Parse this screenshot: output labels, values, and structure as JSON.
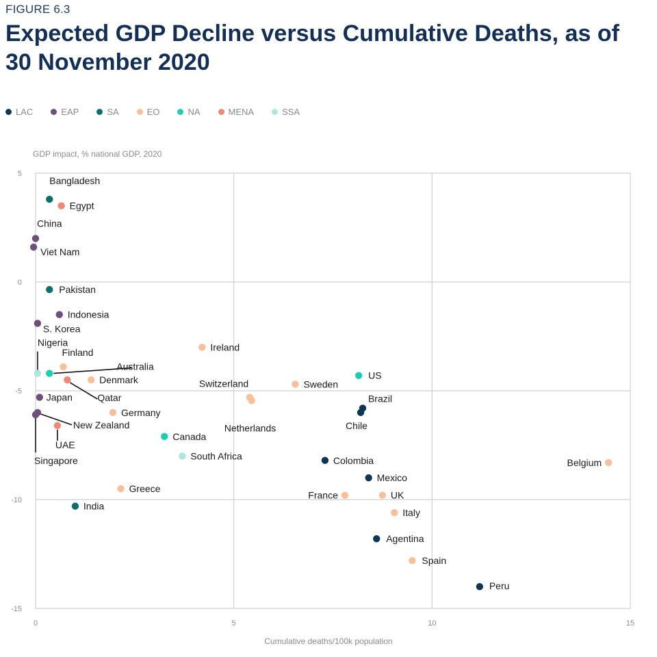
{
  "figure_label": "FIGURE 6.3",
  "colors": {
    "LAC": "#0d3754",
    "EAP": "#6e4f7b",
    "SA": "#0d6e6a",
    "EO": "#f7bf9a",
    "NA": "#1fcdb0",
    "MENA": "#f08877",
    "SSA": "#aee6df",
    "grid": "#cfcfcf"
  },
  "chart_data": {
    "type": "scatter",
    "title": "Expected GDP Decline versus Cumulative Deaths, as of 30 November 2020",
    "xlabel": "Cumulative deaths/100k population",
    "ylabel": "GDP impact, % national GDP, 2020",
    "xlim": [
      0,
      15
    ],
    "ylim": [
      -15,
      5
    ],
    "xticks": [
      0,
      5,
      10,
      15
    ],
    "yticks": [
      5,
      0,
      -5,
      -10,
      -15
    ],
    "grid": true,
    "legend": [
      {
        "key": "LAC",
        "label": "LAC"
      },
      {
        "key": "EAP",
        "label": "EAP"
      },
      {
        "key": "SA",
        "label": "SA"
      },
      {
        "key": "EO",
        "label": "EO"
      },
      {
        "key": "NA",
        "label": "NA"
      },
      {
        "key": "MENA",
        "label": "MENA"
      },
      {
        "key": "SSA",
        "label": "SSA"
      }
    ],
    "points": [
      {
        "name": "Bangladesh",
        "region": "SA",
        "x": 0.35,
        "y": 3.8
      },
      {
        "name": "Egypt",
        "region": "MENA",
        "x": 0.65,
        "y": 3.5
      },
      {
        "name": "China",
        "region": "EAP",
        "x": 0.0,
        "y": 2.0
      },
      {
        "name": "Viet Nam",
        "region": "EAP",
        "x": -0.05,
        "y": 1.6
      },
      {
        "name": "Pakistan",
        "region": "SA",
        "x": 0.35,
        "y": -0.35
      },
      {
        "name": "Indonesia",
        "region": "EAP",
        "x": 0.6,
        "y": -1.5
      },
      {
        "name": "S. Korea",
        "region": "EAP",
        "x": 0.05,
        "y": -1.9
      },
      {
        "name": "Ireland",
        "region": "EO",
        "x": 4.2,
        "y": -3.0
      },
      {
        "name": "Nigeria",
        "region": "SSA",
        "x": 0.05,
        "y": -4.2
      },
      {
        "name": "Finland",
        "region": "EO",
        "x": 0.7,
        "y": -3.9
      },
      {
        "name": "Australia",
        "region": "NA",
        "x": 0.35,
        "y": -4.2
      },
      {
        "name": "Denmark",
        "region": "EO",
        "x": 1.4,
        "y": -4.5
      },
      {
        "name": "Qatar",
        "region": "MENA",
        "x": 0.8,
        "y": -4.5
      },
      {
        "name": "Japan",
        "region": "EAP",
        "x": 0.1,
        "y": -5.3
      },
      {
        "name": "Germany",
        "region": "EO",
        "x": 1.95,
        "y": -6.0
      },
      {
        "name": "New Zealand",
        "region": "EAP",
        "x": 0.05,
        "y": -6.0
      },
      {
        "name": "Singapore",
        "region": "EAP",
        "x": 0.0,
        "y": -6.1
      },
      {
        "name": "UAE",
        "region": "MENA",
        "x": 0.55,
        "y": -6.6
      },
      {
        "name": "Canada",
        "region": "NA",
        "x": 3.25,
        "y": -7.1
      },
      {
        "name": "South Africa",
        "region": "SSA",
        "x": 3.7,
        "y": -8.0
      },
      {
        "name": "Greece",
        "region": "EO",
        "x": 2.15,
        "y": -9.5
      },
      {
        "name": "India",
        "region": "SA",
        "x": 1.0,
        "y": -10.3
      },
      {
        "name": "US",
        "region": "NA",
        "x": 8.15,
        "y": -4.3
      },
      {
        "name": "Switzerland",
        "region": "EO",
        "x": 5.4,
        "y": -5.3
      },
      {
        "name": "Netherlands",
        "region": "EO",
        "x": 5.45,
        "y": -5.45
      },
      {
        "name": "Sweden",
        "region": "EO",
        "x": 6.55,
        "y": -4.7
      },
      {
        "name": "Brazil",
        "region": "LAC",
        "x": 8.25,
        "y": -5.8
      },
      {
        "name": "Chile",
        "region": "LAC",
        "x": 8.2,
        "y": -6.0
      },
      {
        "name": "Colombia",
        "region": "LAC",
        "x": 7.3,
        "y": -8.2
      },
      {
        "name": "Mexico",
        "region": "LAC",
        "x": 8.4,
        "y": -9.0
      },
      {
        "name": "France",
        "region": "EO",
        "x": 7.8,
        "y": -9.8
      },
      {
        "name": "UK",
        "region": "EO",
        "x": 8.75,
        "y": -9.8
      },
      {
        "name": "Italy",
        "region": "EO",
        "x": 9.05,
        "y": -10.6
      },
      {
        "name": "Agentina",
        "region": "LAC",
        "x": 8.6,
        "y": -11.8
      },
      {
        "name": "Spain",
        "region": "EO",
        "x": 9.5,
        "y": -12.8
      },
      {
        "name": "Peru",
        "region": "LAC",
        "x": 11.2,
        "y": -14.0
      },
      {
        "name": "Belgium",
        "region": "EO",
        "x": 14.45,
        "y": -8.3
      }
    ]
  }
}
